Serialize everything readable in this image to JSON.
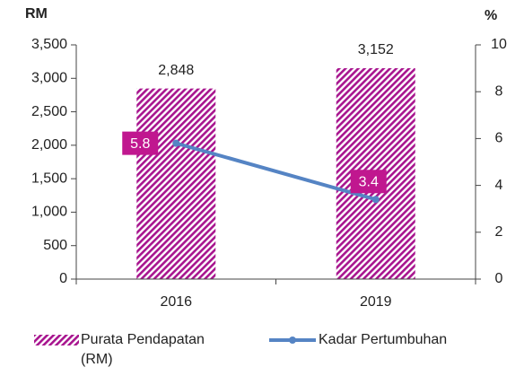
{
  "chart_data": {
    "type": "bar",
    "y_label": "RM",
    "y2_label": "%",
    "categories": [
      "2016",
      "2019"
    ],
    "series": [
      {
        "name": "Purata Pendapatan (RM)",
        "color": "#a8158f",
        "values": [
          2848,
          3152
        ],
        "value_labels": [
          "2,848",
          "3,152"
        ]
      },
      {
        "name": "Kadar Pertumbuhan",
        "type": "line",
        "axis": "y2",
        "color": "#5584c4",
        "values": [
          5.8,
          3.4
        ],
        "label_color": "#c0178f"
      }
    ],
    "ylim": [
      0,
      3500
    ],
    "yticks": [
      0,
      500,
      {
        "value": 1000,
        "label": "1,000"
      },
      {
        "value": 1500,
        "label": "1,500"
      },
      {
        "value": 2000,
        "label": "2,000"
      },
      {
        "value": 2500,
        "label": "2,500"
      },
      {
        "value": 3000,
        "label": "3,000"
      },
      {
        "value": 3500,
        "label": "3,500"
      }
    ],
    "y2lim": [
      0,
      10
    ],
    "y2ticks": [
      0,
      2,
      4,
      6,
      8,
      10
    ]
  }
}
